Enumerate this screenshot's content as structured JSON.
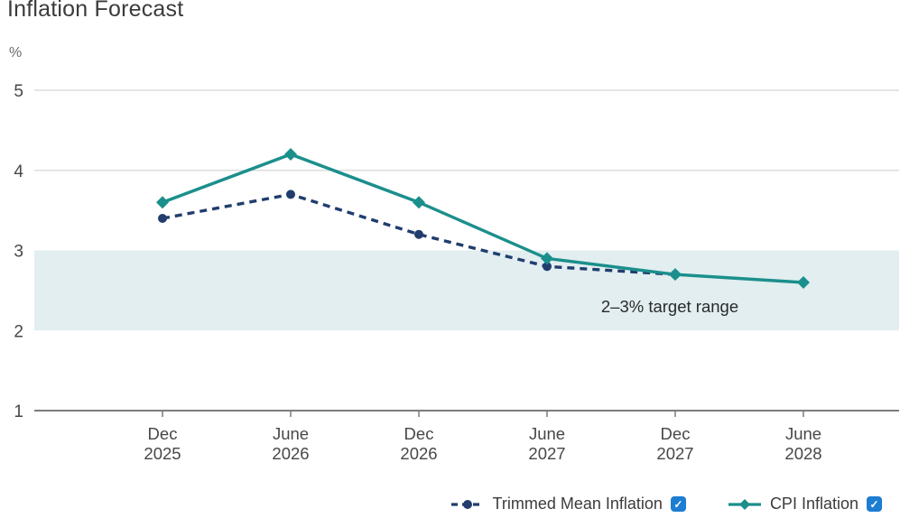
{
  "title": "Inflation Forecast",
  "icons": {
    "checkmark": "✓"
  },
  "chart_data": {
    "type": "line",
    "title": "Inflation Forecast",
    "y_unit": "%",
    "categories": [
      "Dec\n2025",
      "June\n2026",
      "Dec\n2026",
      "June\n2027",
      "Dec\n2027",
      "June\n2028"
    ],
    "series": [
      {
        "name": "Trimmed Mean Inflation",
        "values": [
          3.4,
          3.7,
          3.2,
          2.8,
          2.7,
          null
        ],
        "color": "#203d6d",
        "line_style": "dashed",
        "marker": "circle"
      },
      {
        "name": "CPI Inflation",
        "values": [
          3.6,
          4.2,
          3.6,
          2.9,
          2.7,
          2.6
        ],
        "color": "#1b8f8c",
        "line_style": "solid",
        "marker": "diamond"
      }
    ],
    "ylim": [
      1,
      5
    ],
    "yticks": [
      {
        "value": 5,
        "grid": true
      },
      {
        "value": 4,
        "grid": true
      },
      {
        "value": 3,
        "grid": false
      },
      {
        "value": 2,
        "grid": false
      },
      {
        "value": 1,
        "grid": false,
        "axis": true
      }
    ],
    "band": {
      "from": 2,
      "to": 3,
      "label": "2–3% target range",
      "color": "#e2eef0"
    },
    "grid": "horizontal-partial",
    "legend_position": "bottom-right"
  },
  "legend": {
    "items": [
      {
        "label": "Trimmed Mean Inflation",
        "checked": true
      },
      {
        "label": "CPI Inflation",
        "checked": true
      }
    ]
  },
  "colors": {
    "checkbox": "#1d7dd3",
    "gridline": "#dcdcdc",
    "axis_line": "#7b7b7b",
    "axis_text": "#474747",
    "annotation_text": "#2a2a2a",
    "title_text": "#3b3b3b"
  }
}
